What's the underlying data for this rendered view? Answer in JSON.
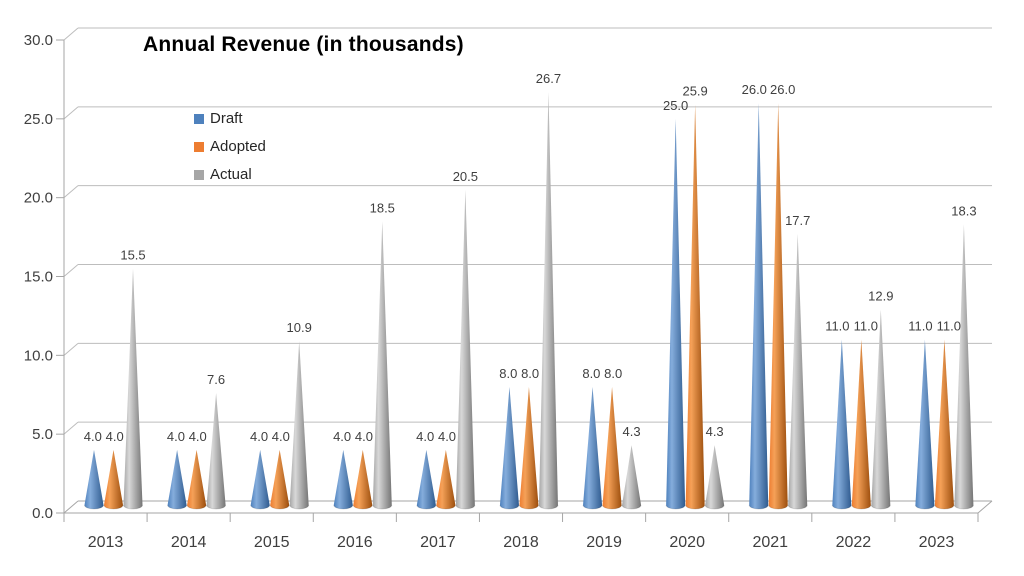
{
  "title": "Annual Revenue (in thousands)",
  "chart_data": {
    "type": "bar",
    "subtype": "3d-cone",
    "title": "Annual Revenue (in thousands)",
    "categories": [
      "2013",
      "2014",
      "2015",
      "2016",
      "2017",
      "2018",
      "2019",
      "2020",
      "2021",
      "2022",
      "2023"
    ],
    "series": [
      {
        "name": "Draft",
        "color": "#4E81BD",
        "color_light": "#85ADDC",
        "color_dark": "#2F5B8F",
        "values": [
          4.0,
          4.0,
          4.0,
          4.0,
          4.0,
          8.0,
          8.0,
          25.0,
          26.0,
          11.0,
          11.0
        ]
      },
      {
        "name": "Adopted",
        "color": "#ED7D31",
        "color_light": "#F5A158",
        "color_dark": "#9C4E0D",
        "values": [
          4.0,
          4.0,
          4.0,
          4.0,
          4.0,
          8.0,
          8.0,
          25.9,
          26.0,
          11.0,
          11.0
        ]
      },
      {
        "name": "Actual",
        "color": "#A6A6A6",
        "color_light": "#D8D8D8",
        "color_dark": "#757575",
        "values": [
          15.5,
          7.6,
          10.9,
          18.5,
          20.5,
          26.7,
          4.3,
          4.3,
          17.7,
          12.9,
          18.3
        ]
      }
    ],
    "ylim": [
      0,
      30
    ],
    "ytick_step": 5,
    "ytick_labels": [
      "0.0",
      "5.0",
      "10.0",
      "15.0",
      "20.0",
      "25.0",
      "30.0"
    ],
    "data_labels": true,
    "grid": true,
    "legend_position": "upper-left-inside",
    "colors": {
      "grid": "#BDBDBD",
      "axis": "#A6A6A6",
      "label": "#3F3F3F",
      "title": "#000000",
      "background": "#FFFFFF"
    }
  }
}
